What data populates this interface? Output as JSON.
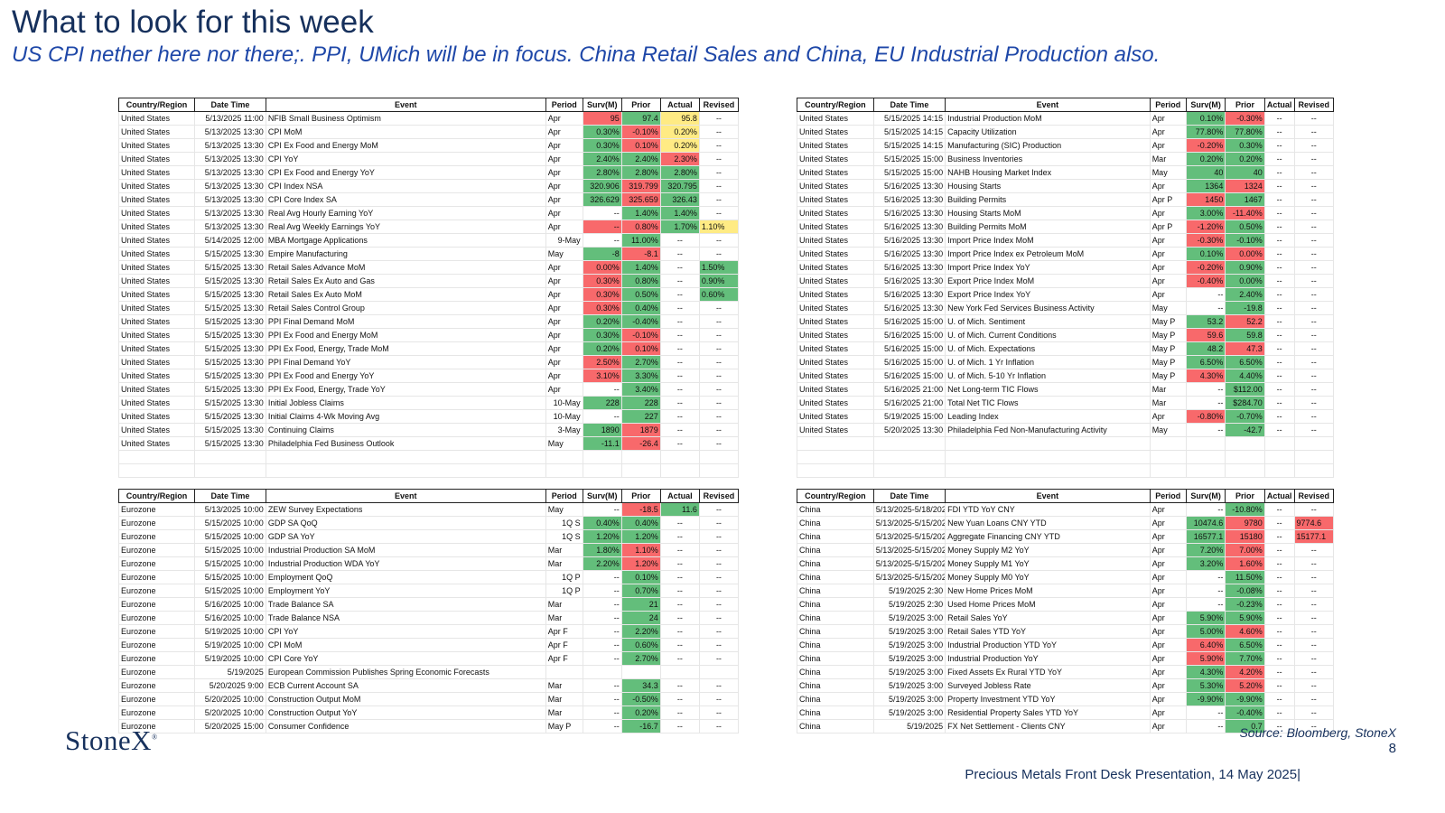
{
  "header": {
    "title": "What to look for this week",
    "subtitle": "US CPI nether here nor there;.  PPI, UMich will be in focus.  China  Retail Sales and China, EU Industrial Production also."
  },
  "columns": [
    "Country/Region",
    "Date Time",
    "Event",
    "Period",
    "Surv(M)",
    "Prior",
    "Actual",
    "Revised"
  ],
  "colors": {
    "green": "#63be7b",
    "red": "#f8696b",
    "yellow": "#ffeb84",
    "navy": "#16305c",
    "blue": "#1e47a8"
  },
  "tables": [
    {
      "rows": [
        [
          "United States",
          "5/13/2025 11:00",
          "NFIB Small Business Optimism",
          "Apr",
          "95",
          "97.4",
          "95.8",
          "--"
        ],
        [
          "United States",
          "5/13/2025 13:30",
          "CPI MoM",
          "Apr",
          "0.30%",
          "-0.10%",
          "0.20%",
          "--"
        ],
        [
          "United States",
          "5/13/2025 13:30",
          "CPI Ex Food and Energy MoM",
          "Apr",
          "0.30%",
          "0.10%",
          "0.20%",
          "--"
        ],
        [
          "United States",
          "5/13/2025 13:30",
          "CPI YoY",
          "Apr",
          "2.40%",
          "2.40%",
          "2.30%",
          "--"
        ],
        [
          "United States",
          "5/13/2025 13:30",
          "CPI Ex Food and Energy YoY",
          "Apr",
          "2.80%",
          "2.80%",
          "2.80%",
          "--"
        ],
        [
          "United States",
          "5/13/2025 13:30",
          "CPI Index NSA",
          "Apr",
          "320.906",
          "319.799",
          "320.795",
          "--"
        ],
        [
          "United States",
          "5/13/2025 13:30",
          "CPI Core Index SA",
          "Apr",
          "326.629",
          "325.659",
          "326.43",
          "--"
        ],
        [
          "United States",
          "5/13/2025 13:30",
          "Real Avg Hourly Earning YoY",
          "Apr",
          "--",
          "1.40%",
          "1.40%",
          "--"
        ],
        [
          "United States",
          "5/13/2025 13:30",
          "Real Avg Weekly Earnings YoY",
          "Apr",
          "--",
          "0.80%",
          "1.70%",
          "1.10%"
        ],
        [
          "United States",
          "5/14/2025 12:00",
          "MBA Mortgage Applications",
          "9-May",
          "--",
          "11.00%",
          "--",
          "--"
        ],
        [
          "United States",
          "5/15/2025 13:30",
          "Empire Manufacturing",
          "May",
          "-8",
          "-8.1",
          "--",
          "--"
        ],
        [
          "United States",
          "5/15/2025 13:30",
          "Retail Sales Advance MoM",
          "Apr",
          "0.00%",
          "1.40%",
          "--",
          "1.50%"
        ],
        [
          "United States",
          "5/15/2025 13:30",
          "Retail Sales Ex Auto and Gas",
          "Apr",
          "0.30%",
          "0.80%",
          "--",
          "0.90%"
        ],
        [
          "United States",
          "5/15/2025 13:30",
          "Retail Sales Ex Auto MoM",
          "Apr",
          "0.30%",
          "0.50%",
          "--",
          "0.60%"
        ],
        [
          "United States",
          "5/15/2025 13:30",
          "Retail Sales Control Group",
          "Apr",
          "0.30%",
          "0.40%",
          "--",
          "--"
        ],
        [
          "United States",
          "5/15/2025 13:30",
          "PPI Final Demand MoM",
          "Apr",
          "0.20%",
          "-0.40%",
          "--",
          "--"
        ],
        [
          "United States",
          "5/15/2025 13:30",
          "PPI Ex Food and Energy MoM",
          "Apr",
          "0.30%",
          "-0.10%",
          "--",
          "--"
        ],
        [
          "United States",
          "5/15/2025 13:30",
          "PPI Ex Food, Energy, Trade MoM",
          "Apr",
          "0.20%",
          "0.10%",
          "--",
          "--"
        ],
        [
          "United States",
          "5/15/2025 13:30",
          "PPI Final Demand YoY",
          "Apr",
          "2.50%",
          "2.70%",
          "--",
          "--"
        ],
        [
          "United States",
          "5/15/2025 13:30",
          "PPI Ex Food and Energy YoY",
          "Apr",
          "3.10%",
          "3.30%",
          "--",
          "--"
        ],
        [
          "United States",
          "5/15/2025 13:30",
          "PPI Ex Food, Energy, Trade YoY",
          "Apr",
          "--",
          "3.40%",
          "--",
          "--"
        ],
        [
          "United States",
          "5/15/2025 13:30",
          "Initial Jobless Claims",
          "10-May",
          "228",
          "228",
          "--",
          "--"
        ],
        [
          "United States",
          "5/15/2025 13:30",
          "Initial Claims 4-Wk Moving Avg",
          "10-May",
          "--",
          "227",
          "--",
          "--"
        ],
        [
          "United States",
          "5/15/2025 13:30",
          "Continuing Claims",
          "3-May",
          "1890",
          "1879",
          "--",
          "--"
        ],
        [
          "United States",
          "5/15/2025 13:30",
          "Philadelphia Fed Business Outlook",
          "May",
          "-11.1",
          "-26.4",
          "--",
          "--"
        ],
        [
          "",
          "",
          "",
          "",
          "",
          "",
          "",
          ""
        ],
        [
          "",
          "",
          "",
          "",
          "",
          "",
          "",
          ""
        ]
      ],
      "fills": [
        "....RGY.",
        "....GRY.",
        "....GRY.",
        "....GGR.",
        "....GGG.",
        "....GRG.",
        "....GRG.",
        ".....GG.",
        "....RRGY",
        ".....G..",
        "....GR..",
        "....RG.G",
        "....RG.G",
        "....RG.G",
        "....RG..",
        "....GG..",
        "....GR..",
        "....GR..",
        "....RG..",
        "....RG..",
        ".....G..",
        "....GG..",
        ".....G..",
        "....GR..",
        "....GR..",
        "........",
        "........"
      ]
    },
    {
      "rows": [
        [
          "United States",
          "5/15/2025 14:15",
          "Industrial Production MoM",
          "Apr",
          "0.10%",
          "-0.30%",
          "--",
          "--"
        ],
        [
          "United States",
          "5/15/2025 14:15",
          "Capacity Utilization",
          "Apr",
          "77.80%",
          "77.80%",
          "--",
          "--"
        ],
        [
          "United States",
          "5/15/2025 14:15",
          "Manufacturing (SIC) Production",
          "Apr",
          "-0.20%",
          "0.30%",
          "--",
          "--"
        ],
        [
          "United States",
          "5/15/2025 15:00",
          "Business Inventories",
          "Mar",
          "0.20%",
          "0.20%",
          "--",
          "--"
        ],
        [
          "United States",
          "5/15/2025 15:00",
          "NAHB Housing Market Index",
          "May",
          "40",
          "40",
          "--",
          "--"
        ],
        [
          "United States",
          "5/16/2025 13:30",
          "Housing Starts",
          "Apr",
          "1364",
          "1324",
          "--",
          "--"
        ],
        [
          "United States",
          "5/16/2025 13:30",
          "Building Permits",
          "Apr P",
          "1450",
          "1467",
          "--",
          "--"
        ],
        [
          "United States",
          "5/16/2025 13:30",
          "Housing Starts MoM",
          "Apr",
          "3.00%",
          "-11.40%",
          "--",
          "--"
        ],
        [
          "United States",
          "5/16/2025 13:30",
          "Building Permits MoM",
          "Apr P",
          "-1.20%",
          "0.50%",
          "--",
          "--"
        ],
        [
          "United States",
          "5/16/2025 13:30",
          "Import Price Index MoM",
          "Apr",
          "-0.30%",
          "-0.10%",
          "--",
          "--"
        ],
        [
          "United States",
          "5/16/2025 13:30",
          "Import Price Index ex Petroleum MoM",
          "Apr",
          "0.10%",
          "0.00%",
          "--",
          "--"
        ],
        [
          "United States",
          "5/16/2025 13:30",
          "Import Price Index YoY",
          "Apr",
          "-0.20%",
          "0.90%",
          "--",
          "--"
        ],
        [
          "United States",
          "5/16/2025 13:30",
          "Export Price Index MoM",
          "Apr",
          "-0.40%",
          "0.00%",
          "--",
          "--"
        ],
        [
          "United States",
          "5/16/2025 13:30",
          "Export Price Index YoY",
          "Apr",
          "--",
          "2.40%",
          "--",
          "--"
        ],
        [
          "United States",
          "5/16/2025 13:30",
          "New York Fed Services Business Activity",
          "May",
          "--",
          "-19.8",
          "--",
          "--"
        ],
        [
          "United States",
          "5/16/2025 15:00",
          "U. of Mich. Sentiment",
          "May P",
          "53.2",
          "52.2",
          "--",
          "--"
        ],
        [
          "United States",
          "5/16/2025 15:00",
          "U. of Mich. Current Conditions",
          "May P",
          "59.6",
          "59.8",
          "--",
          "--"
        ],
        [
          "United States",
          "5/16/2025 15:00",
          "U. of Mich. Expectations",
          "May P",
          "48.2",
          "47.3",
          "--",
          "--"
        ],
        [
          "United States",
          "5/16/2025 15:00",
          "U. of Mich. 1 Yr Inflation",
          "May P",
          "6.50%",
          "6.50%",
          "--",
          "--"
        ],
        [
          "United States",
          "5/16/2025 15:00",
          "U. of Mich. 5-10 Yr Inflation",
          "May P",
          "4.30%",
          "4.40%",
          "--",
          "--"
        ],
        [
          "United States",
          "5/16/2025 21:00",
          "Net Long-term TIC Flows",
          "Mar",
          "--",
          "$112.00",
          "--",
          "--"
        ],
        [
          "United States",
          "5/16/2025 21:00",
          "Total Net TIC Flows",
          "Mar",
          "--",
          "$284.70",
          "--",
          "--"
        ],
        [
          "United States",
          "5/19/2025 15:00",
          "Leading Index",
          "Apr",
          "-0.80%",
          "-0.70%",
          "--",
          "--"
        ],
        [
          "United States",
          "5/20/2025 13:30",
          "Philadelphia Fed Non-Manufacturing Activity",
          "May",
          "--",
          "-42.7",
          "--",
          "--"
        ],
        [
          "",
          "",
          "",
          "",
          "",
          "",
          "",
          ""
        ],
        [
          "",
          "",
          "",
          "",
          "",
          "",
          "",
          ""
        ],
        [
          "",
          "",
          "",
          "",
          "",
          "",
          "",
          ""
        ]
      ],
      "fills": [
        "....GR..",
        "....GG..",
        "....RG..",
        "....GG..",
        "....GG..",
        "....GR..",
        "....RG..",
        "....GR..",
        "....RG..",
        "....RG..",
        "....GR..",
        "....RG..",
        "....RG..",
        ".....G..",
        ".....G..",
        "....GR..",
        "....RG..",
        "....GR..",
        "....GG..",
        "....RG..",
        ".....G..",
        ".....G..",
        "....RG..",
        ".....G..",
        "........",
        "........",
        "........"
      ]
    },
    {
      "rows": [
        [
          "Eurozone",
          "5/13/2025 10:00",
          "ZEW Survey Expectations",
          "May",
          "--",
          "-18.5",
          "11.6",
          "--"
        ],
        [
          "Eurozone",
          "5/15/2025 10:00",
          "GDP SA QoQ",
          "1Q S",
          "0.40%",
          "0.40%",
          "--",
          "--"
        ],
        [
          "Eurozone",
          "5/15/2025 10:00",
          "GDP SA YoY",
          "1Q S",
          "1.20%",
          "1.20%",
          "--",
          "--"
        ],
        [
          "Eurozone",
          "5/15/2025 10:00",
          "Industrial Production SA MoM",
          "Mar",
          "1.80%",
          "1.10%",
          "--",
          "--"
        ],
        [
          "Eurozone",
          "5/15/2025 10:00",
          "Industrial Production WDA YoY",
          "Mar",
          "2.20%",
          "1.20%",
          "--",
          "--"
        ],
        [
          "Eurozone",
          "5/15/2025 10:00",
          "Employment QoQ",
          "1Q P",
          "--",
          "0.10%",
          "--",
          "--"
        ],
        [
          "Eurozone",
          "5/15/2025 10:00",
          "Employment YoY",
          "1Q P",
          "--",
          "0.70%",
          "--",
          "--"
        ],
        [
          "Eurozone",
          "5/16/2025 10:00",
          "Trade Balance SA",
          "Mar",
          "--",
          "21",
          "--",
          "--"
        ],
        [
          "Eurozone",
          "5/16/2025 10:00",
          "Trade Balance NSA",
          "Mar",
          "--",
          "24",
          "--",
          "--"
        ],
        [
          "Eurozone",
          "5/19/2025 10:00",
          "CPI YoY",
          "Apr F",
          "--",
          "2.20%",
          "--",
          "--"
        ],
        [
          "Eurozone",
          "5/19/2025 10:00",
          "CPI MoM",
          "Apr F",
          "--",
          "0.60%",
          "--",
          "--"
        ],
        [
          "Eurozone",
          "5/19/2025 10:00",
          "CPI Core YoY",
          "Apr F",
          "--",
          "2.70%",
          "--",
          "--"
        ],
        [
          "Eurozone",
          "5/19/2025",
          "European Commission Publishes Spring Economic Forecasts",
          "",
          "",
          "",
          "",
          ""
        ],
        [
          "Eurozone",
          "5/20/2025 9:00",
          "ECB Current Account SA",
          "Mar",
          "--",
          "34.3",
          "--",
          "--"
        ],
        [
          "Eurozone",
          "5/20/2025 10:00",
          "Construction Output MoM",
          "Mar",
          "--",
          "-0.50%",
          "--",
          "--"
        ],
        [
          "Eurozone",
          "5/20/2025 10:00",
          "Construction Output YoY",
          "Mar",
          "--",
          "0.20%",
          "--",
          "--"
        ],
        [
          "Eurozone",
          "5/20/2025 15:00",
          "Consumer Confidence",
          "May P",
          "--",
          "-16.7",
          "--",
          "--"
        ]
      ],
      "fills": [
        ".....RG.",
        "....GG..",
        "....GG..",
        "....GR..",
        "....GR..",
        ".....G..",
        ".....G..",
        ".....G..",
        ".....G..",
        ".....G..",
        ".....G..",
        ".....G..",
        "........",
        ".....G..",
        ".....G..",
        ".....G..",
        ".....G.."
      ]
    },
    {
      "rows": [
        [
          "China",
          "5/13/2025-5/18/2025",
          "FDI YTD YoY CNY",
          "Apr",
          "--",
          "-10.80%",
          "--",
          "--"
        ],
        [
          "China",
          "5/13/2025-5/15/2025",
          "New Yuan Loans CNY YTD",
          "Apr",
          "10474.6",
          "9780",
          "--",
          "9774.6"
        ],
        [
          "China",
          "5/13/2025-5/15/2025",
          "Aggregate Financing CNY YTD",
          "Apr",
          "16577.1",
          "15180",
          "--",
          "15177.1"
        ],
        [
          "China",
          "5/13/2025-5/15/2025",
          "Money Supply M2 YoY",
          "Apr",
          "7.20%",
          "7.00%",
          "--",
          "--"
        ],
        [
          "China",
          "5/13/2025-5/15/2025",
          "Money Supply M1 YoY",
          "Apr",
          "3.20%",
          "1.60%",
          "--",
          "--"
        ],
        [
          "China",
          "5/13/2025-5/15/2025",
          "Money Supply M0 YoY",
          "Apr",
          "--",
          "11.50%",
          "--",
          "--"
        ],
        [
          "China",
          "5/19/2025 2:30",
          "New Home Prices MoM",
          "Apr",
          "--",
          "-0.08%",
          "--",
          "--"
        ],
        [
          "China",
          "5/19/2025 2:30",
          "Used Home Prices MoM",
          "Apr",
          "--",
          "-0.23%",
          "--",
          "--"
        ],
        [
          "China",
          "5/19/2025 3:00",
          "Retail Sales YoY",
          "Apr",
          "5.90%",
          "5.90%",
          "--",
          "--"
        ],
        [
          "China",
          "5/19/2025 3:00",
          "Retail Sales YTD YoY",
          "Apr",
          "5.00%",
          "4.60%",
          "--",
          "--"
        ],
        [
          "China",
          "5/19/2025 3:00",
          "Industrial Production YTD YoY",
          "Apr",
          "6.40%",
          "6.50%",
          "--",
          "--"
        ],
        [
          "China",
          "5/19/2025 3:00",
          "Industrial Production YoY",
          "Apr",
          "5.90%",
          "7.70%",
          "--",
          "--"
        ],
        [
          "China",
          "5/19/2025 3:00",
          "Fixed Assets Ex Rural YTD YoY",
          "Apr",
          "4.30%",
          "4.20%",
          "--",
          "--"
        ],
        [
          "China",
          "5/19/2025 3:00",
          "Surveyed Jobless Rate",
          "Apr",
          "5.30%",
          "5.20%",
          "--",
          "--"
        ],
        [
          "China",
          "5/19/2025 3:00",
          "Property Investment YTD YoY",
          "Apr",
          "-9.90%",
          "-9.90%",
          "--",
          "--"
        ],
        [
          "China",
          "5/19/2025 3:00",
          "Residential Property Sales YTD YoY",
          "Apr",
          "--",
          "-0.40%",
          "--",
          "--"
        ],
        [
          "China",
          "5/19/2025",
          "FX Net Settlement - Clients CNY",
          "Apr",
          "--",
          "0.7",
          "--",
          "--"
        ]
      ],
      "fills": [
        ".....G..",
        "....GR.R",
        "....GR.R",
        "....GR..",
        "....GR..",
        ".....G..",
        ".....G..",
        ".....G..",
        "....GG..",
        "....GR..",
        "....RG..",
        "....RG..",
        "....GR..",
        "....GR..",
        "....GG..",
        ".....G..",
        ".....G.."
      ]
    }
  ],
  "logo": {
    "text": "StoneX",
    "mark": "®"
  },
  "footer": {
    "source": "Source: Bloomberg, StoneX",
    "page_number": "8",
    "presentation": "Precious Metals Front Desk Presentation, 14 May 2025|"
  }
}
